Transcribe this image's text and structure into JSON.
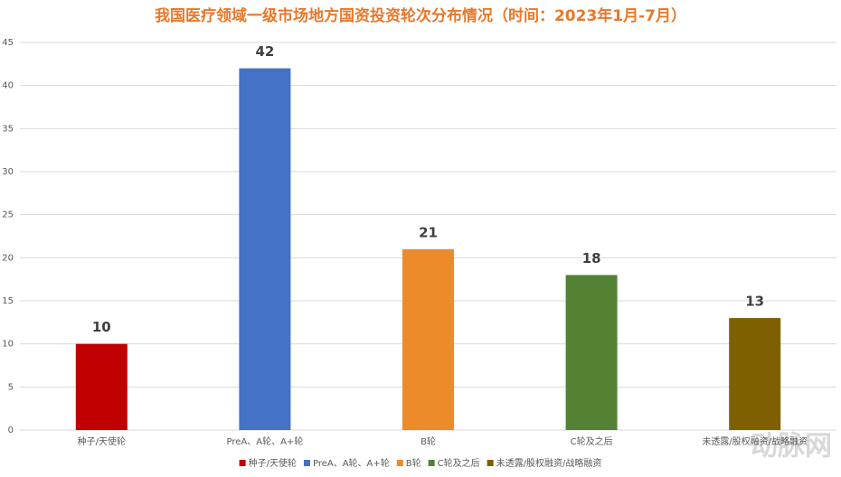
{
  "chart_data": {
    "type": "bar",
    "title": "我国医疗领域一级市场地方国资投资轮次分布情况（时间：2023年1月-7月）",
    "categories": [
      "种子/天使轮",
      "PreA、A轮、A+轮",
      "B轮",
      "C轮及之后",
      "未透露/股权融资/战略融资"
    ],
    "values": [
      10,
      42,
      21,
      18,
      13
    ],
    "colors": [
      "#c00000",
      "#4472c4",
      "#ed8b2b",
      "#548235",
      "#7f6000"
    ],
    "ylim": [
      0,
      45
    ],
    "yticks": [
      0,
      5,
      10,
      15,
      20,
      25,
      30,
      35,
      40,
      45
    ],
    "grid": true,
    "legend": "bottom",
    "watermark": "动脉网"
  }
}
